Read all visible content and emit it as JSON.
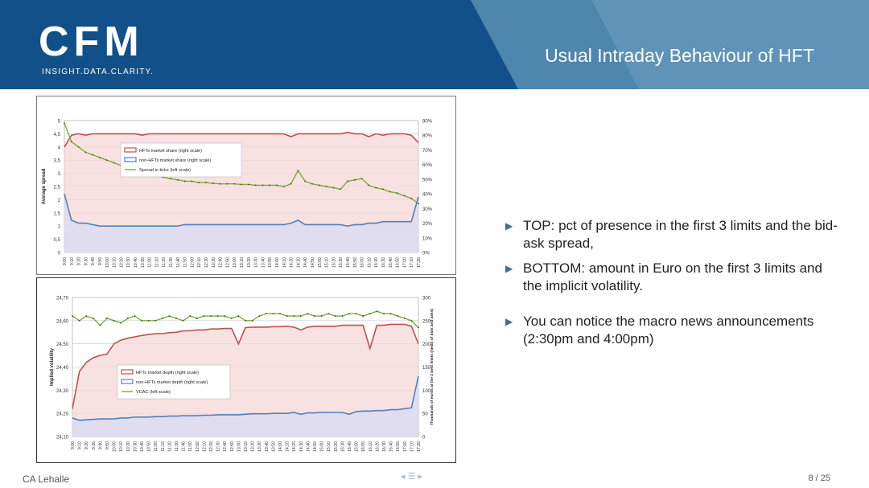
{
  "header": {
    "logo_text": "CFM",
    "logo_tagline": "INSIGHT.DATA.CLARITY.",
    "title": "Usual Intraday Behaviour of HFT"
  },
  "colors": {
    "header_blue": "#12508a",
    "band_blue": "#4f86ad",
    "hft_red": "#c0504d",
    "hft_fill": "#f6d7d7",
    "nonhft_blue": "#4f81bd",
    "nonhft_fill": "#dcdcf2",
    "green": "#7fa93b"
  },
  "bullets": [
    {
      "icon": "triangle-bullet-icon",
      "text": "TOP: pct of presence in the first 3 limits and the bid-ask spread,"
    },
    {
      "icon": "triangle-bullet-icon",
      "text": "BOTTOM: amount in Euro on the first 3 limits and the implicit volatility."
    },
    {
      "icon": "triangle-bullet-icon",
      "text": "You can notice the macro news announcements (2:30pm and 4:00pm)"
    }
  ],
  "footer": {
    "author": "CA Lehalle",
    "page": "8 / 25",
    "nav_icons": "◂ ☰ ▸"
  },
  "chart_data": [
    {
      "type": "line",
      "title": "",
      "ylabel": "Average spread",
      "ylim": [
        0,
        5
      ],
      "y_ticks": [
        "0",
        "0,5",
        "1",
        "1,5",
        "2",
        "2,5",
        "3",
        "3,5",
        "4",
        "4,5",
        "5"
      ],
      "y2lim": [
        0,
        90
      ],
      "y2_ticks": [
        "0%",
        "10%",
        "20%",
        "30%",
        "40%",
        "50%",
        "60%",
        "70%",
        "80%",
        "90%"
      ],
      "x_ticks": [
        "9:00",
        "9:10",
        "9:20",
        "9:30",
        "9:40",
        "9:50",
        "10:00",
        "10:10",
        "10:20",
        "10:30",
        "10:40",
        "10:50",
        "11:00",
        "11:10",
        "11:20",
        "11:30",
        "11:40",
        "11:50",
        "12:00",
        "12:10",
        "12:20",
        "12:30",
        "12:40",
        "12:50",
        "13:00",
        "13:10",
        "13:20",
        "13:30",
        "13:40",
        "13:50",
        "14:00",
        "14:10",
        "14:20",
        "14:30",
        "14:40",
        "14:50",
        "15:00",
        "15:10",
        "15:20",
        "15:30",
        "15:40",
        "15:50",
        "16:00",
        "16:10",
        "16:20",
        "16:30",
        "16:40",
        "16:50",
        "17:00",
        "17:10",
        "17:20"
      ],
      "series": [
        {
          "name": "HFTs market share (right scale)",
          "axis": "right",
          "style": "area-red",
          "values": [
            72,
            80,
            81,
            80,
            81,
            81,
            81,
            81,
            81,
            81,
            81,
            80,
            81,
            81,
            81,
            81,
            81,
            81,
            81,
            81,
            81,
            81,
            81,
            81,
            81,
            81,
            81,
            81,
            81,
            81,
            81,
            81,
            79,
            81,
            81,
            81,
            81,
            81,
            81,
            81,
            82,
            81,
            81,
            79,
            81,
            80,
            81,
            81,
            81,
            80,
            75
          ]
        },
        {
          "name": "non-HFTs market share (right scale)",
          "axis": "right",
          "style": "area-blue",
          "values": [
            40,
            22,
            20,
            20,
            19,
            18,
            18,
            18,
            18,
            18,
            18,
            18,
            18,
            18,
            18,
            18,
            18,
            19,
            19,
            19,
            19,
            19,
            19,
            19,
            19,
            19,
            19,
            19,
            19,
            19,
            19,
            19,
            20,
            22,
            19,
            19,
            19,
            19,
            19,
            19,
            18,
            19,
            19,
            20,
            20,
            21,
            21,
            21,
            21,
            21,
            38
          ]
        },
        {
          "name": "Spread in ticks (left scale)",
          "axis": "left",
          "style": "line-green",
          "values": [
            4.9,
            4.2,
            4.0,
            3.8,
            3.7,
            3.6,
            3.5,
            3.4,
            3.3,
            3.2,
            3.1,
            3.0,
            2.95,
            2.9,
            2.85,
            2.8,
            2.75,
            2.7,
            2.7,
            2.65,
            2.65,
            2.62,
            2.6,
            2.6,
            2.6,
            2.58,
            2.58,
            2.55,
            2.55,
            2.55,
            2.55,
            2.5,
            2.6,
            3.1,
            2.7,
            2.6,
            2.55,
            2.5,
            2.45,
            2.4,
            2.7,
            2.75,
            2.8,
            2.55,
            2.45,
            2.4,
            2.3,
            2.25,
            2.15,
            2.05,
            1.85
          ]
        }
      ]
    },
    {
      "type": "line",
      "title": "",
      "ylabel": "Implied volatility",
      "y2label": "Thousands of euros at the 3 best limits (mean of bids and asks)",
      "ylim": [
        24.1,
        24.7
      ],
      "y_ticks": [
        "24,10",
        "24,20",
        "24,30",
        "24,40",
        "24,50",
        "24,60",
        "24,70"
      ],
      "y2lim": [
        0,
        300
      ],
      "y2_ticks": [
        "0",
        "50",
        "100",
        "150",
        "200",
        "250",
        "300"
      ],
      "x_ticks": [
        "9:00",
        "9:10",
        "9:20",
        "9:30",
        "9:40",
        "9:50",
        "10:00",
        "10:10",
        "10:20",
        "10:30",
        "10:40",
        "10:50",
        "11:00",
        "11:10",
        "11:20",
        "11:30",
        "11:40",
        "11:50",
        "12:00",
        "12:10",
        "12:20",
        "12:30",
        "12:40",
        "12:50",
        "13:00",
        "13:10",
        "13:20",
        "13:30",
        "13:40",
        "13:50",
        "14:00",
        "14:10",
        "14:20",
        "14:30",
        "14:40",
        "14:50",
        "15:00",
        "15:10",
        "15:20",
        "15:30",
        "15:40",
        "15:50",
        "16:00",
        "16:10",
        "16:20",
        "16:30",
        "16:40",
        "16:50",
        "17:00",
        "17:10",
        "17:20"
      ],
      "series": [
        {
          "name": "HFTs market depth (right scale)",
          "axis": "right",
          "style": "area-red",
          "values": [
            60,
            140,
            160,
            170,
            175,
            178,
            200,
            208,
            212,
            215,
            218,
            220,
            222,
            222,
            224,
            225,
            228,
            228,
            230,
            230,
            232,
            232,
            233,
            233,
            200,
            235,
            236,
            236,
            236,
            237,
            237,
            238,
            236,
            230,
            236,
            238,
            238,
            238,
            238,
            240,
            240,
            240,
            240,
            190,
            240,
            240,
            242,
            242,
            242,
            238,
            200
          ]
        },
        {
          "name": "non-HFTs market depth (right scale)",
          "axis": "right",
          "style": "area-blue",
          "values": [
            40,
            35,
            36,
            37,
            38,
            38,
            38,
            40,
            40,
            42,
            42,
            42,
            43,
            43,
            44,
            44,
            45,
            45,
            45,
            46,
            46,
            47,
            47,
            47,
            47,
            48,
            49,
            49,
            49,
            50,
            50,
            50,
            52,
            48,
            51,
            51,
            52,
            52,
            52,
            52,
            48,
            54,
            55,
            55,
            56,
            56,
            58,
            58,
            60,
            62,
            130
          ]
        },
        {
          "name": "VCAC (left scale)",
          "axis": "left",
          "style": "line-green",
          "values": [
            24.62,
            24.6,
            24.62,
            24.61,
            24.58,
            24.61,
            24.6,
            24.59,
            24.61,
            24.62,
            24.6,
            24.6,
            24.6,
            24.61,
            24.62,
            24.61,
            24.6,
            24.62,
            24.61,
            24.62,
            24.62,
            24.62,
            24.62,
            24.61,
            24.62,
            24.6,
            24.6,
            24.62,
            24.63,
            24.63,
            24.63,
            24.62,
            24.62,
            24.62,
            24.63,
            24.62,
            24.62,
            24.63,
            24.62,
            24.62,
            24.63,
            24.63,
            24.62,
            24.63,
            24.64,
            24.63,
            24.63,
            24.62,
            24.61,
            24.6,
            24.57
          ]
        }
      ]
    }
  ]
}
